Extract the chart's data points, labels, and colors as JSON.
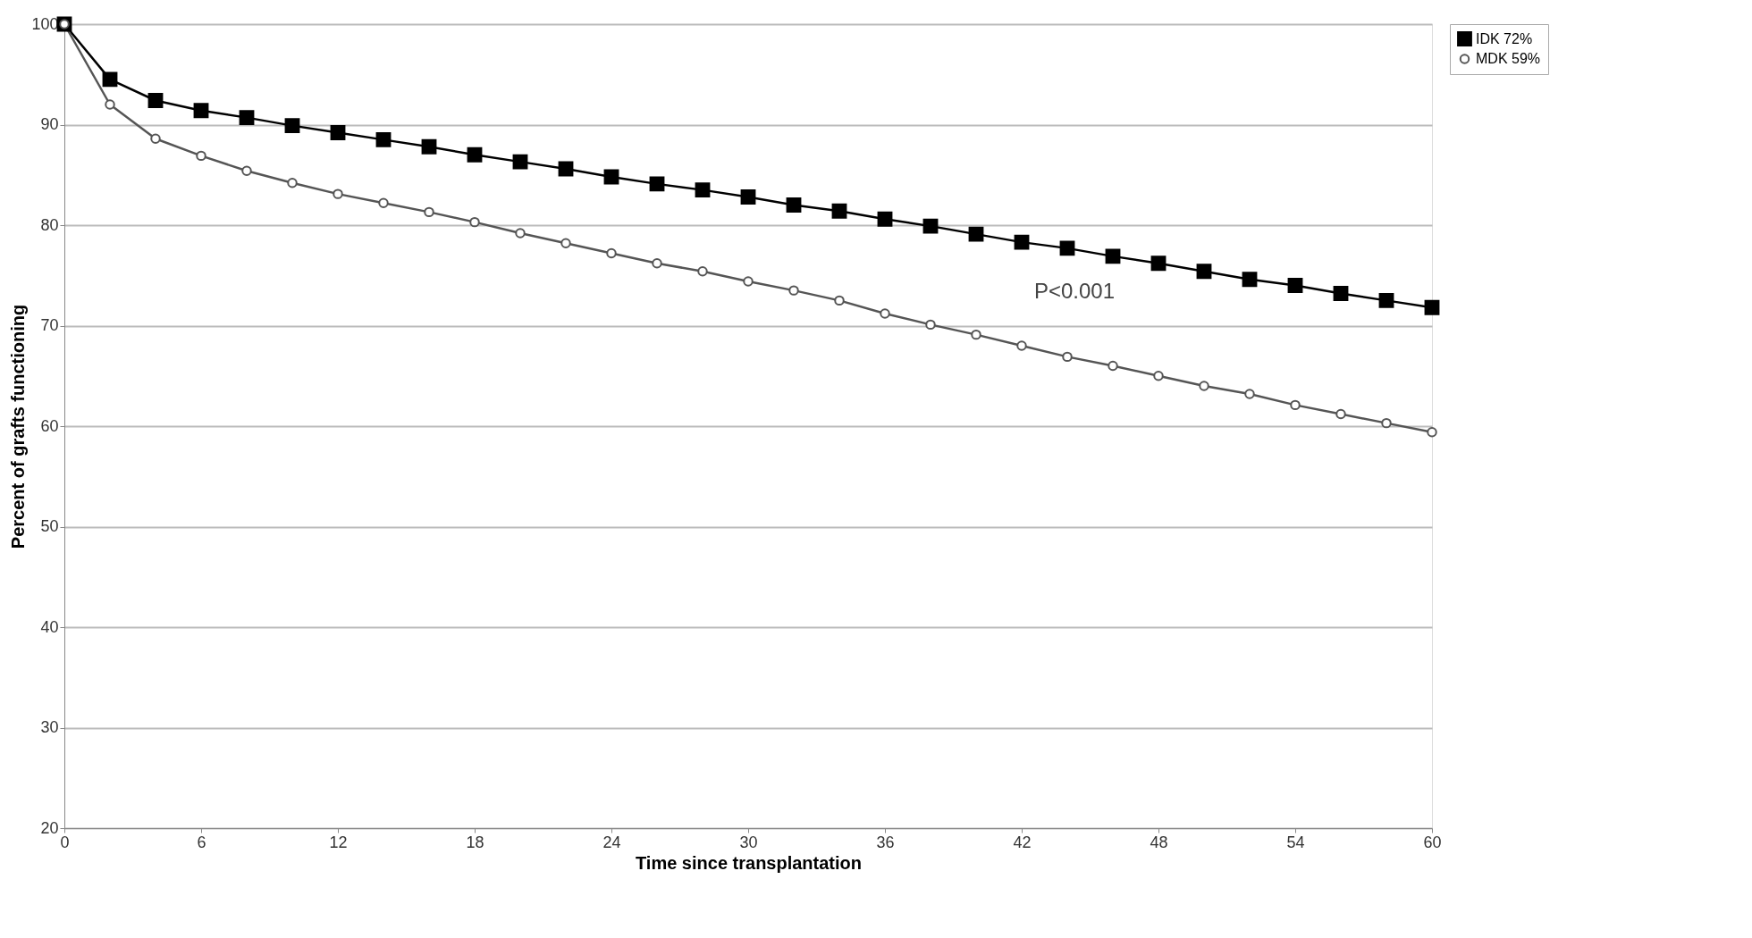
{
  "chart_data": {
    "type": "line",
    "xlabel": "Time since transplantation",
    "ylabel": "Percent of grafts functioning",
    "x": [
      0,
      2,
      4,
      6,
      8,
      10,
      12,
      14,
      16,
      18,
      20,
      22,
      24,
      26,
      28,
      30,
      32,
      34,
      36,
      38,
      40,
      42,
      44,
      46,
      48,
      50,
      52,
      54,
      56,
      58,
      60
    ],
    "series": [
      {
        "name": "IDK  72%",
        "color": "#000000",
        "marker": "square",
        "values": [
          100,
          94.5,
          92.4,
          91.4,
          90.7,
          89.9,
          89.2,
          88.5,
          87.8,
          87.0,
          86.3,
          85.6,
          84.8,
          84.1,
          83.5,
          82.8,
          82.0,
          81.4,
          80.6,
          79.9,
          79.1,
          78.3,
          77.7,
          76.9,
          76.2,
          75.4,
          74.6,
          74.0,
          73.2,
          72.5,
          71.8
        ]
      },
      {
        "name": "MDK 59%",
        "color": "#555555",
        "marker": "circle",
        "values": [
          100,
          92.0,
          88.6,
          86.9,
          85.4,
          84.2,
          83.1,
          82.2,
          81.3,
          80.3,
          79.2,
          78.2,
          77.2,
          76.2,
          75.4,
          74.4,
          73.5,
          72.5,
          71.2,
          70.1,
          69.1,
          68.0,
          66.9,
          66.0,
          65.0,
          64.0,
          63.2,
          62.1,
          61.2,
          60.3,
          59.4
        ]
      }
    ],
    "annotations": [
      "P<0.001"
    ],
    "xlim": [
      0,
      60
    ],
    "xticks": [
      0,
      6,
      12,
      18,
      24,
      30,
      36,
      42,
      48,
      54,
      60
    ],
    "ylim": [
      20,
      100
    ],
    "yticks": [
      20,
      30,
      40,
      50,
      60,
      70,
      80,
      90,
      100
    ],
    "grid": "y",
    "legend": "right"
  }
}
